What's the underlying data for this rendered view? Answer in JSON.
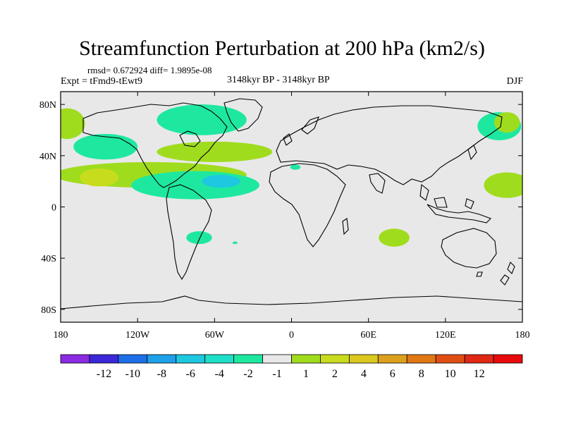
{
  "title": "Streamfunction Perturbation at 200 hPa (km2/s)",
  "stats": "rmsd= 0.672924 diff= 1.9895e-08",
  "experiment": "Expt = tFmd9-tEwt9",
  "period": "3148kyr BP - 3148kyr BP",
  "season": "DJF",
  "colors": {
    "ocean_background": "#e8e8e8",
    "coastline": "#000000"
  },
  "chart_data": {
    "type": "filled-contour-map",
    "projection": "cylindrical-equidistant",
    "xlim": [
      -180,
      180
    ],
    "ylim": [
      -90,
      90
    ],
    "x_ticks": [
      {
        "value": -180,
        "label": "180"
      },
      {
        "value": -120,
        "label": "120W"
      },
      {
        "value": -60,
        "label": "60W"
      },
      {
        "value": 0,
        "label": "0"
      },
      {
        "value": 60,
        "label": "60E"
      },
      {
        "value": 120,
        "label": "120E"
      },
      {
        "value": 180,
        "label": "180"
      }
    ],
    "y_ticks": [
      {
        "value": 80,
        "label": "80N"
      },
      {
        "value": 40,
        "label": "40N"
      },
      {
        "value": 0,
        "label": "0"
      },
      {
        "value": -40,
        "label": "40S"
      },
      {
        "value": -80,
        "label": "80S"
      }
    ],
    "colorbar": {
      "colors": [
        "#8a2be2",
        "#3c28d8",
        "#1e6ee8",
        "#1ea0e8",
        "#1ec8e0",
        "#1ee0c8",
        "#1ee8a0",
        "#e8e8e8",
        "#a0dc1e",
        "#c8dc1e",
        "#dcc81e",
        "#dca01e",
        "#e07814",
        "#e04e14",
        "#e02814",
        "#e80a0a"
      ],
      "labels": [
        "-12",
        "-10",
        "-8",
        "-6",
        "-4",
        "-2",
        "-1",
        "1",
        "2",
        "4",
        "6",
        "8",
        "10",
        "12"
      ]
    },
    "regions": [
      {
        "name": "North Pacific west",
        "color": "#a0dc1e",
        "center": [
          -175,
          65
        ],
        "radius": [
          14,
          12
        ]
      },
      {
        "name": "North Pacific mid",
        "color": "#1ee8a0",
        "center": [
          -145,
          47
        ],
        "radius": [
          25,
          10
        ]
      },
      {
        "name": "Subtropical band",
        "color": "#a0dc1e",
        "center": [
          -110,
          25
        ],
        "radius": [
          75,
          10
        ]
      },
      {
        "name": "Subtropical core",
        "color": "#c8dc1e",
        "center": [
          -150,
          23
        ],
        "radius": [
          15,
          7
        ]
      },
      {
        "name": "Canada",
        "color": "#1ee8a0",
        "center": [
          -70,
          68
        ],
        "radius": [
          35,
          12
        ]
      },
      {
        "name": "North Atlantic",
        "color": "#a0dc1e",
        "center": [
          -60,
          43
        ],
        "radius": [
          45,
          8
        ]
      },
      {
        "name": "Tropical Atlantic",
        "color": "#1ee8a0",
        "center": [
          -75,
          17
        ],
        "radius": [
          50,
          11
        ]
      },
      {
        "name": "Caribbean",
        "color": "#1ec8e0",
        "center": [
          -55,
          20
        ],
        "radius": [
          15,
          5
        ]
      },
      {
        "name": "Mediterranean",
        "color": "#1ee8a0",
        "center": [
          3,
          31
        ],
        "radius": [
          4,
          2
        ]
      },
      {
        "name": "South America",
        "color": "#1ee8a0",
        "center": [
          -72,
          -24
        ],
        "radius": [
          10,
          5
        ]
      },
      {
        "name": "South Atlantic",
        "color": "#1ee8a0",
        "center": [
          -44,
          -28
        ],
        "radius": [
          2,
          1
        ]
      },
      {
        "name": "Indian Ocean",
        "color": "#a0dc1e",
        "center": [
          80,
          -24
        ],
        "radius": [
          12,
          7
        ]
      },
      {
        "name": "NW Pacific",
        "color": "#1ee8a0",
        "center": [
          162,
          63
        ],
        "radius": [
          17,
          11
        ]
      },
      {
        "name": "Kamchatka",
        "color": "#a0dc1e",
        "center": [
          168,
          66
        ],
        "radius": [
          10,
          8
        ]
      },
      {
        "name": "West Pacific",
        "color": "#a0dc1e",
        "center": [
          168,
          17
        ],
        "radius": [
          18,
          10
        ]
      }
    ]
  }
}
